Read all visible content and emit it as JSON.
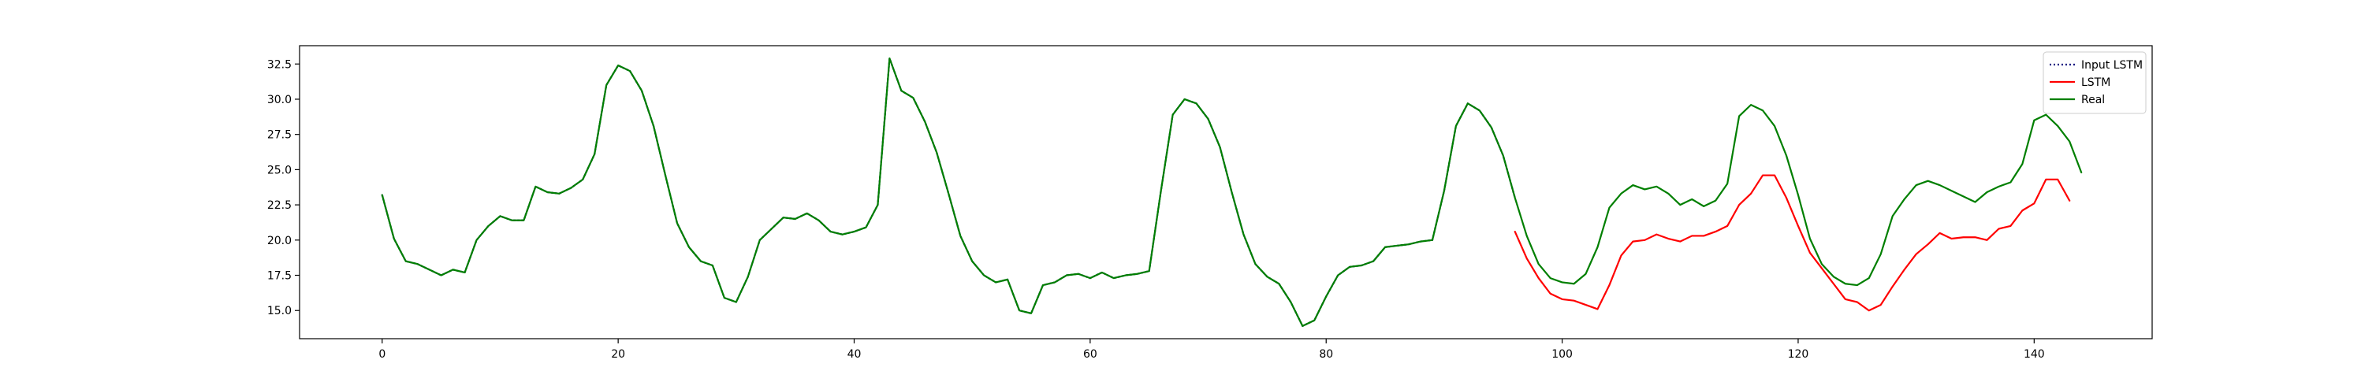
{
  "chart_data": {
    "type": "line",
    "xlim": [
      -7,
      150
    ],
    "ylim": [
      13.0,
      33.8
    ],
    "xticks": [
      0,
      20,
      40,
      60,
      80,
      100,
      120,
      140
    ],
    "yticks": [
      15.0,
      17.5,
      20.0,
      22.5,
      25.0,
      27.5,
      30.0,
      32.5
    ],
    "legend_position": "top-right",
    "grid": false,
    "series": [
      {
        "name": "Input LSTM",
        "color": "#00007f",
        "style": "dotted",
        "x_start": 0,
        "values": [
          23.2,
          20.1,
          18.5,
          18.3,
          17.9,
          17.5,
          17.9,
          17.7,
          20.0,
          21.0,
          21.7,
          21.4,
          21.4,
          23.8,
          23.4,
          23.3,
          23.7,
          24.3,
          26.1,
          31.0,
          32.4,
          32.0,
          30.6,
          28.1,
          24.6,
          21.2,
          19.5,
          18.5,
          18.2,
          15.9,
          15.6,
          17.4,
          20.0,
          20.8,
          21.6,
          21.5,
          21.9,
          21.4,
          20.6,
          20.4,
          20.6,
          20.9,
          22.5,
          32.9,
          30.6,
          30.1,
          28.4,
          26.2,
          23.3,
          20.3,
          18.5,
          17.5,
          17.0,
          17.2,
          15.0,
          14.8,
          16.8,
          17.0,
          17.5,
          17.6,
          17.3,
          17.7,
          17.3,
          17.5,
          17.6,
          17.8,
          23.5,
          28.9,
          30.0,
          29.7,
          28.6,
          26.6,
          23.4,
          20.4,
          18.3,
          17.4,
          16.9,
          15.6,
          13.9,
          14.3,
          16.0,
          17.5,
          18.1,
          18.2,
          18.5,
          19.5,
          19.6,
          19.7,
          19.9,
          20.0,
          23.5,
          28.1,
          29.7,
          29.2,
          28.0,
          26.0,
          23.0
        ]
      },
      {
        "name": "LSTM",
        "color": "#ff0000",
        "style": "solid",
        "x_start": 96,
        "values": [
          20.6,
          18.7,
          17.3,
          16.2,
          15.8,
          15.7,
          15.4,
          15.1,
          16.8,
          18.9,
          19.9,
          20.0,
          20.4,
          20.1,
          19.9,
          20.3,
          20.3,
          20.6,
          21.0,
          22.5,
          23.3,
          24.6,
          24.6,
          23.0,
          21.0,
          19.1,
          18.0,
          16.9,
          15.8,
          15.6,
          15.0,
          15.4,
          16.7,
          17.9,
          19.0,
          19.7,
          20.5,
          20.1,
          20.2,
          20.2,
          20.0,
          20.8,
          21.0,
          22.1,
          22.6,
          24.3,
          24.3,
          22.8
        ]
      },
      {
        "name": "Real",
        "color": "#007f00",
        "style": "solid",
        "x_start": 0,
        "values": [
          23.2,
          20.1,
          18.5,
          18.3,
          17.9,
          17.5,
          17.9,
          17.7,
          20.0,
          21.0,
          21.7,
          21.4,
          21.4,
          23.8,
          23.4,
          23.3,
          23.7,
          24.3,
          26.1,
          31.0,
          32.4,
          32.0,
          30.6,
          28.1,
          24.6,
          21.2,
          19.5,
          18.5,
          18.2,
          15.9,
          15.6,
          17.4,
          20.0,
          20.8,
          21.6,
          21.5,
          21.9,
          21.4,
          20.6,
          20.4,
          20.6,
          20.9,
          22.5,
          32.9,
          30.6,
          30.1,
          28.4,
          26.2,
          23.3,
          20.3,
          18.5,
          17.5,
          17.0,
          17.2,
          15.0,
          14.8,
          16.8,
          17.0,
          17.5,
          17.6,
          17.3,
          17.7,
          17.3,
          17.5,
          17.6,
          17.8,
          23.5,
          28.9,
          30.0,
          29.7,
          28.6,
          26.6,
          23.4,
          20.4,
          18.3,
          17.4,
          16.9,
          15.6,
          13.9,
          14.3,
          16.0,
          17.5,
          18.1,
          18.2,
          18.5,
          19.5,
          19.6,
          19.7,
          19.9,
          20.0,
          23.5,
          28.1,
          29.7,
          29.2,
          28.0,
          26.0,
          23.0,
          20.3,
          18.3,
          17.3,
          17.0,
          16.9,
          17.6,
          19.5,
          22.3,
          23.3,
          23.9,
          23.6,
          23.8,
          23.3,
          22.5,
          22.9,
          22.4,
          22.8,
          24.0,
          28.8,
          29.6,
          29.2,
          28.1,
          26.0,
          23.2,
          20.1,
          18.3,
          17.4,
          16.9,
          16.8,
          17.3,
          19.0,
          21.7,
          22.9,
          23.9,
          24.2,
          23.9,
          23.5,
          23.1,
          22.7,
          23.4,
          23.8,
          24.1,
          25.4,
          28.5,
          28.9,
          28.1,
          27.0,
          24.8
        ]
      }
    ]
  }
}
